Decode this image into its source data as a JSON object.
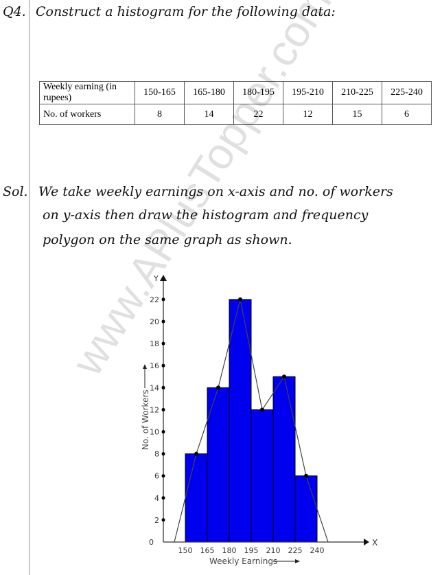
{
  "question": {
    "number": "Q4.",
    "text": "Construct a histogram for the following data:"
  },
  "table": {
    "header": "Weekly earning (in rupees)",
    "classes": [
      "150-165",
      "165-180",
      "180-195",
      "195-210",
      "210-225",
      "225-240"
    ],
    "row_label": "No. of workers",
    "values": [
      "8",
      "14",
      "22",
      "12",
      "15",
      "6"
    ]
  },
  "solution": {
    "label": "Sol.",
    "lines": [
      "We take weekly earnings on x-axis and no. of workers",
      "on y-axis then draw the histogram and frequency",
      "polygon on the same graph as shown."
    ]
  },
  "watermark": "www.APlusTopper.com",
  "chart_data": {
    "type": "bar",
    "xlabel": "Weekly Earnings",
    "ylabel": "No. of Workers",
    "x_axis_letter": "X",
    "y_axis_letter": "Y",
    "bins": [
      [
        150,
        165
      ],
      [
        165,
        180
      ],
      [
        180,
        195
      ],
      [
        195,
        210
      ],
      [
        210,
        225
      ],
      [
        225,
        240
      ]
    ],
    "values": [
      8,
      14,
      22,
      12,
      15,
      6
    ],
    "x_ticks": [
      150,
      165,
      180,
      195,
      210,
      225,
      240
    ],
    "y_ticks": [
      0,
      2,
      4,
      6,
      8,
      10,
      12,
      14,
      16,
      18,
      20,
      22
    ],
    "frequency_polygon": [
      [
        142.5,
        0
      ],
      [
        157.5,
        8
      ],
      [
        172.5,
        14
      ],
      [
        187.5,
        22
      ],
      [
        202.5,
        12
      ],
      [
        217.5,
        15
      ],
      [
        232.5,
        6
      ],
      [
        247.5,
        0
      ]
    ],
    "bar_color": "#0000ee"
  }
}
